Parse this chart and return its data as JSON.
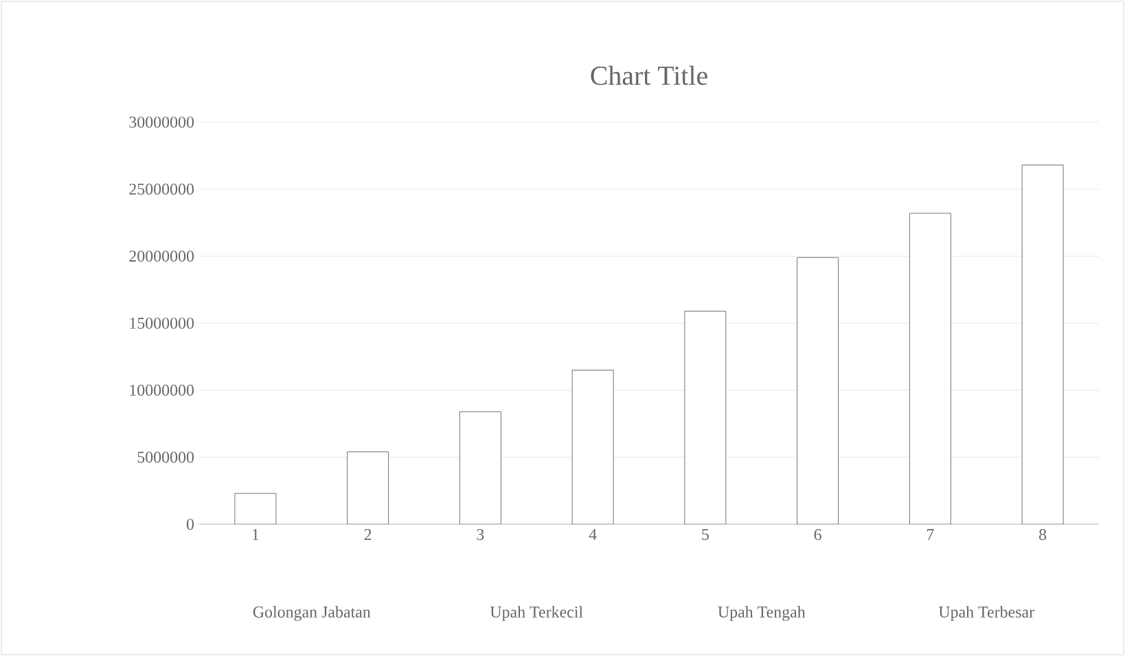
{
  "chart_data": {
    "type": "bar",
    "title": "Chart Title",
    "categories": [
      "1",
      "2",
      "3",
      "4",
      "5",
      "6",
      "7",
      "8"
    ],
    "values": [
      2300000,
      5400000,
      8400000,
      11500000,
      15900000,
      19900000,
      23200000,
      26800000
    ],
    "color": "#ffffff",
    "ylim": [
      0,
      30000000
    ],
    "yticks": [
      0,
      5000000,
      10000000,
      15000000,
      20000000,
      25000000,
      30000000
    ],
    "grid": "y",
    "annotations": [
      "Golongan Jabatan",
      "Upah Terkecil",
      "Upah Tengah",
      "Upah Terbesar"
    ]
  }
}
